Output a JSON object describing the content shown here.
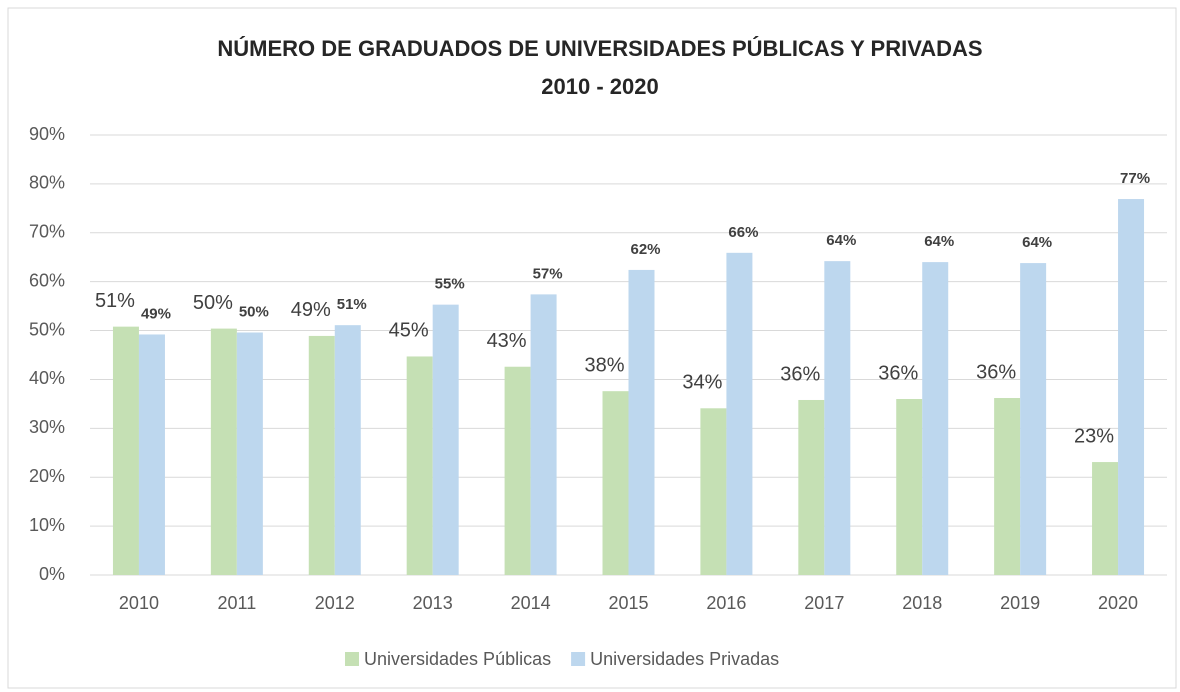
{
  "chart_data": {
    "type": "bar",
    "title": [
      "NÚMERO DE GRADUADOS DE UNIVERSIDADES PÚBLICAS Y PRIVADAS",
      "2010 - 2020"
    ],
    "categories": [
      "2010",
      "2011",
      "2012",
      "2013",
      "2014",
      "2015",
      "2016",
      "2017",
      "2018",
      "2019",
      "2020"
    ],
    "series": [
      {
        "name": "Universidades Públicas",
        "color": "#c5e0b4",
        "values": [
          50.8,
          50.4,
          48.9,
          44.7,
          42.6,
          37.6,
          34.1,
          35.8,
          36,
          36.2,
          23.1
        ],
        "value_labels": [
          "51%",
          "50%",
          "49%",
          "45%",
          "43%",
          "38%",
          "34%",
          "36%",
          "36%",
          "36%",
          "23%"
        ]
      },
      {
        "name": "Universidades Privadas",
        "color": "#bdd7ee",
        "values": [
          49.2,
          49.6,
          51.1,
          55.3,
          57.4,
          62.4,
          65.9,
          64.2,
          64,
          63.8,
          76.9
        ],
        "value_labels": [
          "49%",
          "50%",
          "51%",
          "55%",
          "57%",
          "62%",
          "66%",
          "64%",
          "64%",
          "64%",
          "77%"
        ]
      }
    ],
    "ylim": [
      0,
      90
    ],
    "yticks": [
      {
        "value": 0,
        "label": "0%"
      },
      {
        "value": 10,
        "label": "10%"
      },
      {
        "value": 20,
        "label": "20%"
      },
      {
        "value": 30,
        "label": "30%"
      },
      {
        "value": 40,
        "label": "40%"
      },
      {
        "value": 50,
        "label": "50%"
      },
      {
        "value": 60,
        "label": "60%"
      },
      {
        "value": 70,
        "label": "70%"
      },
      {
        "value": 80,
        "label": "80%"
      },
      {
        "value": 90,
        "label": "90%"
      }
    ],
    "grid": true,
    "legend": "bottom"
  }
}
